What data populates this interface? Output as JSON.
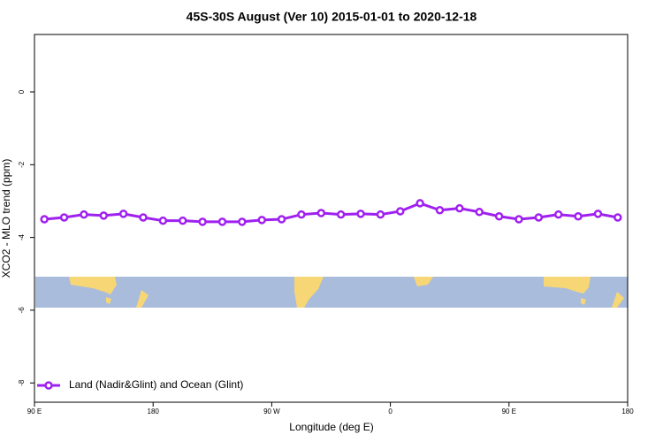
{
  "chart_data": {
    "type": "line",
    "title": "45S-30S August (Ver 10)   2015-01-01 to 2020-12-18",
    "x_label": "Longitude (deg E)",
    "y_label": "XCO2 - MLO trend (ppm)",
    "xlim": [
      90,
      540
    ],
    "xticks": [
      {
        "value": 90,
        "label": "90 E"
      },
      {
        "value": 180,
        "label": "180"
      },
      {
        "value": 270,
        "label": "90 W"
      },
      {
        "value": 360,
        "label": "0"
      },
      {
        "value": 450,
        "label": "90 E"
      },
      {
        "value": 540,
        "label": "180"
      }
    ],
    "ylim": [
      -8.53,
      1.58
    ],
    "yticks": [
      -8,
      -6,
      -4,
      -2,
      0
    ],
    "x": [
      97.5,
      112.5,
      127.5,
      142.5,
      157.5,
      172.5,
      187.5,
      202.5,
      217.5,
      232.5,
      247.5,
      262.5,
      277.5,
      292.5,
      307.5,
      322.5,
      337.5,
      352.5,
      367.5,
      382.5,
      397.5,
      412.5,
      427.5,
      442.5,
      457.5,
      472.5,
      487.5,
      502.5,
      517.5,
      532.5
    ],
    "series": [
      {
        "name": "Land (Nadir&Glint) and Ocean (Glint)",
        "color": "#a020f0",
        "values": [
          -3.5,
          -3.45,
          -3.37,
          -3.4,
          -3.35,
          -3.45,
          -3.54,
          -3.54,
          -3.57,
          -3.57,
          -3.57,
          -3.52,
          -3.5,
          -3.37,
          -3.33,
          -3.37,
          -3.35,
          -3.37,
          -3.28,
          -3.06,
          -3.25,
          -3.2,
          -3.3,
          -3.42,
          -3.5,
          -3.45,
          -3.37,
          -3.42,
          -3.35,
          -3.45
        ]
      }
    ],
    "legend": "bottom-left"
  }
}
